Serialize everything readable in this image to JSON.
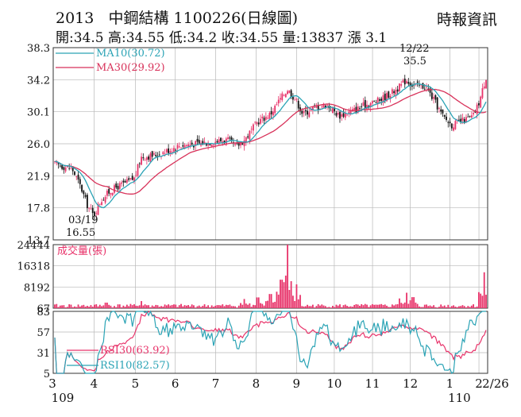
{
  "header": {
    "code": "2013",
    "name": "中鋼結構",
    "date": "1100226",
    "period": "(日線圖)",
    "source": "時報資訊",
    "stats": "開:34.5 高:34.55 低:34.2 收:34.55 量:13837 漲 3.1"
  },
  "colors": {
    "up": "#e8336a",
    "down": "#111111",
    "ma10": "#2aa3b5",
    "ma30": "#d8325a",
    "volume": "#e8336a",
    "rsi30": "#e8336a",
    "rsi10": "#2aa3b5",
    "grid": "#b8b8b8"
  },
  "chart_data": [
    {
      "type": "candlestick",
      "legend": [
        {
          "name": "MA10",
          "value": "(30.72)",
          "color": "#2aa3b5"
        },
        {
          "name": "MA30",
          "value": "(29.92)",
          "color": "#d8325a"
        }
      ],
      "yticks": [
        38.3,
        34.2,
        30.1,
        26.0,
        21.9,
        17.8,
        13.7
      ],
      "ylim": [
        13.7,
        38.3
      ],
      "annotations": [
        {
          "date": "03/19",
          "value": "16.55",
          "at": 0.09
        },
        {
          "date": "12/22",
          "value": "35.5",
          "at": 0.815
        }
      ],
      "path": [
        [
          0.0,
          23.4
        ],
        [
          0.04,
          22.8
        ],
        [
          0.06,
          20.5
        ],
        [
          0.075,
          18.2
        ],
        [
          0.09,
          16.8
        ],
        [
          0.105,
          18.6
        ],
        [
          0.125,
          19.8
        ],
        [
          0.145,
          20.5
        ],
        [
          0.165,
          21.0
        ],
        [
          0.185,
          21.6
        ],
        [
          0.2,
          24.3
        ],
        [
          0.23,
          24.5
        ],
        [
          0.26,
          25.1
        ],
        [
          0.29,
          25.8
        ],
        [
          0.33,
          26.0
        ],
        [
          0.37,
          26.3
        ],
        [
          0.4,
          26.5
        ],
        [
          0.42,
          25.6
        ],
        [
          0.44,
          26.5
        ],
        [
          0.47,
          28.8
        ],
        [
          0.5,
          29.8
        ],
        [
          0.52,
          31.5
        ],
        [
          0.54,
          33.0
        ],
        [
          0.56,
          31.5
        ],
        [
          0.575,
          29.8
        ],
        [
          0.6,
          30.6
        ],
        [
          0.63,
          31.0
        ],
        [
          0.66,
          29.6
        ],
        [
          0.69,
          30.2
        ],
        [
          0.72,
          31.0
        ],
        [
          0.75,
          31.5
        ],
        [
          0.78,
          32.5
        ],
        [
          0.8,
          33.3
        ],
        [
          0.815,
          34.2
        ],
        [
          0.83,
          33.5
        ],
        [
          0.86,
          33.3
        ],
        [
          0.88,
          31.5
        ],
        [
          0.9,
          29.5
        ],
        [
          0.92,
          28.4
        ],
        [
          0.945,
          28.9
        ],
        [
          0.97,
          29.5
        ],
        [
          0.985,
          31.5
        ],
        [
          1.0,
          34.55
        ]
      ]
    },
    {
      "type": "bar",
      "label": "成交量(張)",
      "yticks": [
        24444,
        16318,
        8192,
        67
      ],
      "ylim": [
        67,
        24444
      ],
      "spikes": [
        {
          "at": 0.54,
          "value": 24444
        },
        {
          "at": 0.525,
          "value": 11000
        },
        {
          "at": 0.56,
          "value": 9200
        },
        {
          "at": 0.5,
          "value": 5500
        },
        {
          "at": 0.47,
          "value": 4200
        },
        {
          "at": 0.44,
          "value": 3600
        },
        {
          "at": 0.815,
          "value": 6000
        },
        {
          "at": 0.8,
          "value": 3800
        },
        {
          "at": 0.83,
          "value": 4300
        },
        {
          "at": 0.995,
          "value": 13837
        },
        {
          "at": 0.2,
          "value": 2800
        },
        {
          "at": 0.12,
          "value": 2200
        }
      ]
    },
    {
      "type": "line",
      "yticks": [
        83,
        57,
        31,
        5
      ],
      "ylim": [
        5,
        83
      ],
      "series": [
        {
          "name": "RSI30",
          "value": "(63.92)",
          "color": "#e8336a"
        },
        {
          "name": "RSI10",
          "value": "(82.57)",
          "color": "#2aa3b5"
        }
      ],
      "xticks": [
        {
          "label": "3",
          "sub": "109",
          "at": 0.0
        },
        {
          "label": "4",
          "at": 0.094
        },
        {
          "label": "5",
          "at": 0.189
        },
        {
          "label": "6",
          "at": 0.281
        },
        {
          "label": "7",
          "at": 0.374
        },
        {
          "label": "8",
          "at": 0.467
        },
        {
          "label": "9",
          "at": 0.56
        },
        {
          "label": "10",
          "at": 0.647
        },
        {
          "label": "11",
          "at": 0.735
        },
        {
          "label": "12",
          "at": 0.822
        },
        {
          "label": "1",
          "sub": "110",
          "at": 0.913
        },
        {
          "label": "2",
          "at": 0.98
        },
        {
          "label": "2/26",
          "at": 1.0
        }
      ]
    }
  ]
}
